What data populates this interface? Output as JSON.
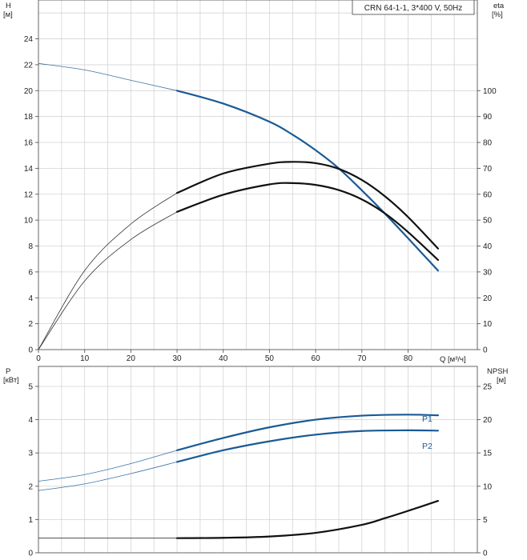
{
  "chart_data": [
    {
      "type": "line",
      "title": "CRN 64-1-1, 3*400 V, 50Hz",
      "xlabel": "Q [м³/ч]",
      "x_ticks": [
        0,
        10,
        20,
        30,
        40,
        50,
        60,
        70,
        80
      ],
      "xlim": [
        0,
        95
      ],
      "ylabel_left_name": "H",
      "ylabel_left_unit": "[м]",
      "y_left_ticks": [
        0,
        2,
        4,
        6,
        8,
        10,
        12,
        14,
        16,
        18,
        20,
        22,
        24
      ],
      "ylim_left": [
        0,
        27
      ],
      "ylabel_right_name": "eta",
      "ylabel_right_unit": "[%]",
      "y_right_ticks": [
        0,
        10,
        20,
        30,
        40,
        50,
        60,
        70,
        80,
        90,
        100
      ],
      "ylim_right": [
        0,
        135
      ],
      "grid": true,
      "series": [
        {
          "axis": "left",
          "color": "#1a5a96",
          "x": [
            0,
            10,
            20,
            30,
            40,
            50,
            55,
            60,
            65,
            70,
            75,
            80,
            86.5
          ],
          "y": [
            22.1,
            21.6,
            20.8,
            20.0,
            19.0,
            17.6,
            16.6,
            15.4,
            14.0,
            12.3,
            10.5,
            8.6,
            6.1
          ]
        },
        {
          "axis": "right",
          "color": "#111111",
          "x": [
            0,
            10,
            20,
            30,
            40,
            50,
            55,
            60,
            65,
            70,
            75,
            80,
            86.5
          ],
          "y": [
            0,
            30.5,
            48.5,
            60.5,
            68.0,
            71.8,
            72.5,
            72.0,
            69.8,
            65.5,
            59.2,
            51.2,
            39.0
          ]
        },
        {
          "axis": "right",
          "color": "#111111",
          "x": [
            0,
            10,
            20,
            30,
            40,
            50,
            55,
            60,
            65,
            70,
            75,
            80,
            86.5
          ],
          "y": [
            0,
            26.5,
            42.5,
            53.2,
            59.8,
            63.8,
            64.3,
            63.6,
            61.6,
            58.0,
            52.6,
            45.4,
            34.6
          ]
        }
      ]
    },
    {
      "type": "line",
      "xlim": [
        0,
        95
      ],
      "ylabel_left_name": "P",
      "ylabel_left_unit": "[кВт]",
      "y_left_ticks": [
        0,
        1,
        2,
        3,
        4,
        5
      ],
      "ylim_left": [
        0,
        5.6
      ],
      "ylabel_right_name": "NPSH",
      "ylabel_right_unit": "[м]",
      "y_right_ticks": [
        0,
        5,
        10,
        15,
        20,
        25
      ],
      "ylim_right": [
        0,
        28
      ],
      "grid": true,
      "series": [
        {
          "name": "P1",
          "axis": "left",
          "color": "#1a5a96",
          "x": [
            0,
            10,
            20,
            30,
            40,
            50,
            60,
            70,
            80,
            86.5
          ],
          "y": [
            2.15,
            2.35,
            2.68,
            3.08,
            3.45,
            3.77,
            4.0,
            4.12,
            4.15,
            4.13
          ]
        },
        {
          "name": "P2",
          "axis": "left",
          "color": "#1a5a96",
          "x": [
            0,
            10,
            20,
            30,
            40,
            50,
            60,
            70,
            80,
            86.5
          ],
          "y": [
            1.87,
            2.07,
            2.38,
            2.73,
            3.08,
            3.35,
            3.55,
            3.66,
            3.68,
            3.67
          ]
        },
        {
          "axis": "right",
          "color": "#111111",
          "x": [
            0,
            10,
            20,
            30,
            40,
            50,
            60,
            70,
            75,
            80,
            86.5
          ],
          "y": [
            2.2,
            2.2,
            2.2,
            2.2,
            2.25,
            2.45,
            3.0,
            4.2,
            5.2,
            6.3,
            7.8
          ]
        }
      ]
    }
  ]
}
